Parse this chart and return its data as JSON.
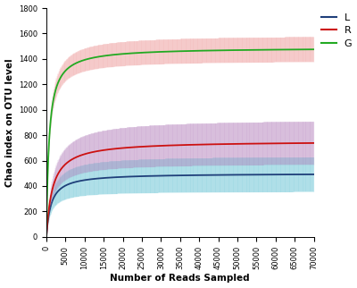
{
  "xlabel": "Number of Reads Sampled",
  "ylabel": "Chao index on OTU level",
  "xlim": [
    0,
    70000
  ],
  "ylim": [
    0,
    1800
  ],
  "xticks": [
    0,
    5000,
    10000,
    15000,
    20000,
    25000,
    30000,
    35000,
    40000,
    45000,
    50000,
    55000,
    60000,
    65000,
    70000
  ],
  "yticks": [
    0,
    200,
    400,
    600,
    800,
    1000,
    1200,
    1400,
    1600,
    1800
  ],
  "curve_params": [
    {
      "label": "L",
      "line_color": "#1f3f7a",
      "fill_color": "#70c8d8",
      "fill_alpha": 0.3,
      "hatch_alpha": 0.55,
      "Smax_mean": 500,
      "k_mean": 1200,
      "Smax_upper": 640,
      "k_upper": 1300,
      "Smax_lower": 360,
      "k_lower": 1100,
      "lw": 1.3
    },
    {
      "label": "R",
      "line_color": "#cc1111",
      "fill_color": "#b888c0",
      "fill_alpha": 0.28,
      "hatch_alpha": 0.55,
      "Smax_mean": 755,
      "k_mean": 1600,
      "Smax_upper": 930,
      "k_upper": 1700,
      "Smax_lower": 580,
      "k_lower": 1500,
      "lw": 1.3
    },
    {
      "label": "G",
      "line_color": "#22aa22",
      "fill_color": "#f0a0a0",
      "fill_alpha": 0.3,
      "hatch_alpha": 0.55,
      "Smax_mean": 1490,
      "k_mean": 700,
      "Smax_upper": 1590,
      "k_upper": 730,
      "Smax_lower": 1390,
      "k_lower": 670,
      "lw": 1.3
    }
  ],
  "background_color": "#ffffff",
  "figsize": [
    4.0,
    3.22
  ],
  "dpi": 100,
  "xlabel_fontsize": 7.5,
  "ylabel_fontsize": 7.5,
  "tick_fontsize": 6.0,
  "legend_fontsize": 8.0
}
